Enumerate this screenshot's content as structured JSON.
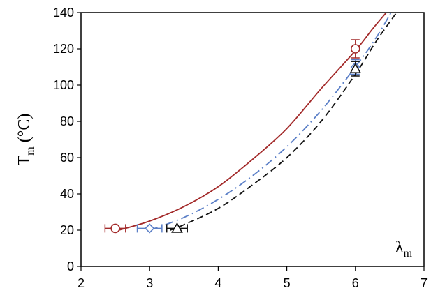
{
  "chart_data": {
    "type": "line",
    "xlabel": {
      "main": "λ",
      "sub": "m"
    },
    "ylabel": {
      "main": "T",
      "sub": "m",
      "unit": "(°C)"
    },
    "xlim": [
      2,
      7
    ],
    "ylim": [
      0,
      140
    ],
    "x_ticks": [
      "2",
      "3",
      "4",
      "5",
      "6",
      "7"
    ],
    "y_ticks": [
      "0",
      "20",
      "40",
      "60",
      "80",
      "100",
      "120",
      "140"
    ],
    "grid": false,
    "curves": [
      {
        "style": "solid",
        "color": "#a32a2a",
        "points": [
          [
            2.55,
            20
          ],
          [
            3,
            25
          ],
          [
            3.5,
            33
          ],
          [
            4,
            44
          ],
          [
            4.5,
            59
          ],
          [
            5,
            76
          ],
          [
            5.5,
            98
          ],
          [
            6,
            119
          ],
          [
            6.25,
            131
          ],
          [
            6.45,
            140
          ]
        ]
      },
      {
        "style": "dash-dot",
        "color": "#5b7fc7",
        "points": [
          [
            3,
            20
          ],
          [
            3.5,
            27
          ],
          [
            4,
            37
          ],
          [
            4.5,
            50
          ],
          [
            5,
            66
          ],
          [
            5.5,
            86
          ],
          [
            6,
            110
          ],
          [
            6.3,
            126
          ],
          [
            6.52,
            140
          ]
        ]
      },
      {
        "style": "dashed",
        "color": "#111111",
        "points": [
          [
            3.3,
            20
          ],
          [
            3.5,
            23
          ],
          [
            4,
            32
          ],
          [
            4.5,
            45
          ],
          [
            5,
            60
          ],
          [
            5.5,
            80
          ],
          [
            6,
            106
          ],
          [
            6.3,
            124
          ],
          [
            6.6,
            140
          ]
        ]
      }
    ],
    "markers": [
      {
        "shape": "circle",
        "color": "#a32a2a",
        "x": 2.5,
        "y": 21,
        "xerr": 0.15
      },
      {
        "shape": "diamond",
        "color": "#5b7fc7",
        "x": 3.0,
        "y": 21,
        "xerr": 0.18
      },
      {
        "shape": "triangle",
        "color": "#111111",
        "x": 3.4,
        "y": 21,
        "xerr": 0.15
      },
      {
        "shape": "circle",
        "color": "#a32a2a",
        "x": 6.0,
        "y": 120,
        "yerr": 5
      },
      {
        "shape": "diamond",
        "color": "#5b7fc7",
        "x": 6.0,
        "y": 110,
        "yerr": 4
      },
      {
        "shape": "triangle",
        "color": "#111111",
        "x": 6.0,
        "y": 109,
        "yerr": 4
      }
    ]
  }
}
